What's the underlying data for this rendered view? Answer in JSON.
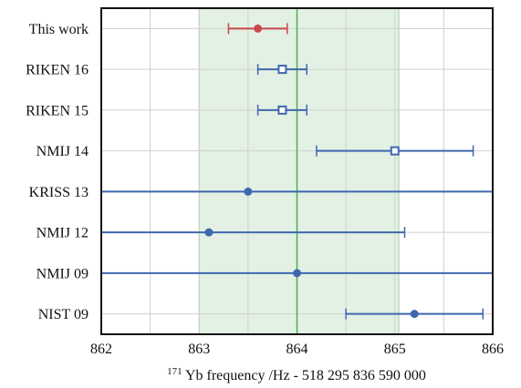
{
  "chart_data": {
    "type": "scatter",
    "subtype": "forest-plot-with-error-bars",
    "title": "",
    "xlabel_sup": "171",
    "xlabel_main": "Yb frequency /Hz - 518 295 836 590 000",
    "ylabel": "",
    "xlim": [
      862,
      866
    ],
    "xticks": [
      862,
      863,
      864,
      865,
      866
    ],
    "grid": true,
    "reference_line": 864.0,
    "reference_band": [
      863.0,
      865.04
    ],
    "colors": {
      "this_work": "#c8484d",
      "others": "#3f67ae",
      "band_fill": "#e2f1e3",
      "band_edge": "#9fcfa0",
      "reference_line": "#4caf50",
      "grid": "#cfcfcf"
    },
    "points": [
      {
        "label": "This work",
        "value": 863.6,
        "err_low": 863.3,
        "err_high": 863.9,
        "marker": "filled-circle",
        "group": "this_work"
      },
      {
        "label": "RIKEN 16",
        "value": 863.85,
        "err_low": 863.6,
        "err_high": 864.1,
        "marker": "open-square",
        "group": "others"
      },
      {
        "label": "RIKEN 15",
        "value": 863.85,
        "err_low": 863.6,
        "err_high": 864.1,
        "marker": "open-square",
        "group": "others"
      },
      {
        "label": "NMIJ 14",
        "value": 865.0,
        "err_low": 864.2,
        "err_high": 865.8,
        "marker": "open-square",
        "group": "others"
      },
      {
        "label": "KRISS 13",
        "value": 863.5,
        "err_low": 861.0,
        "err_high": 867.0,
        "marker": "filled-circle",
        "group": "others"
      },
      {
        "label": "NMIJ 12",
        "value": 863.1,
        "err_low": 861.0,
        "err_high": 865.1,
        "marker": "filled-circle",
        "group": "others"
      },
      {
        "label": "NMIJ 09",
        "value": 864.0,
        "err_low": 861.0,
        "err_high": 867.0,
        "marker": "filled-circle",
        "group": "others"
      },
      {
        "label": "NIST 09",
        "value": 865.2,
        "err_low": 864.5,
        "err_high": 865.9,
        "marker": "filled-circle",
        "group": "others"
      }
    ]
  }
}
